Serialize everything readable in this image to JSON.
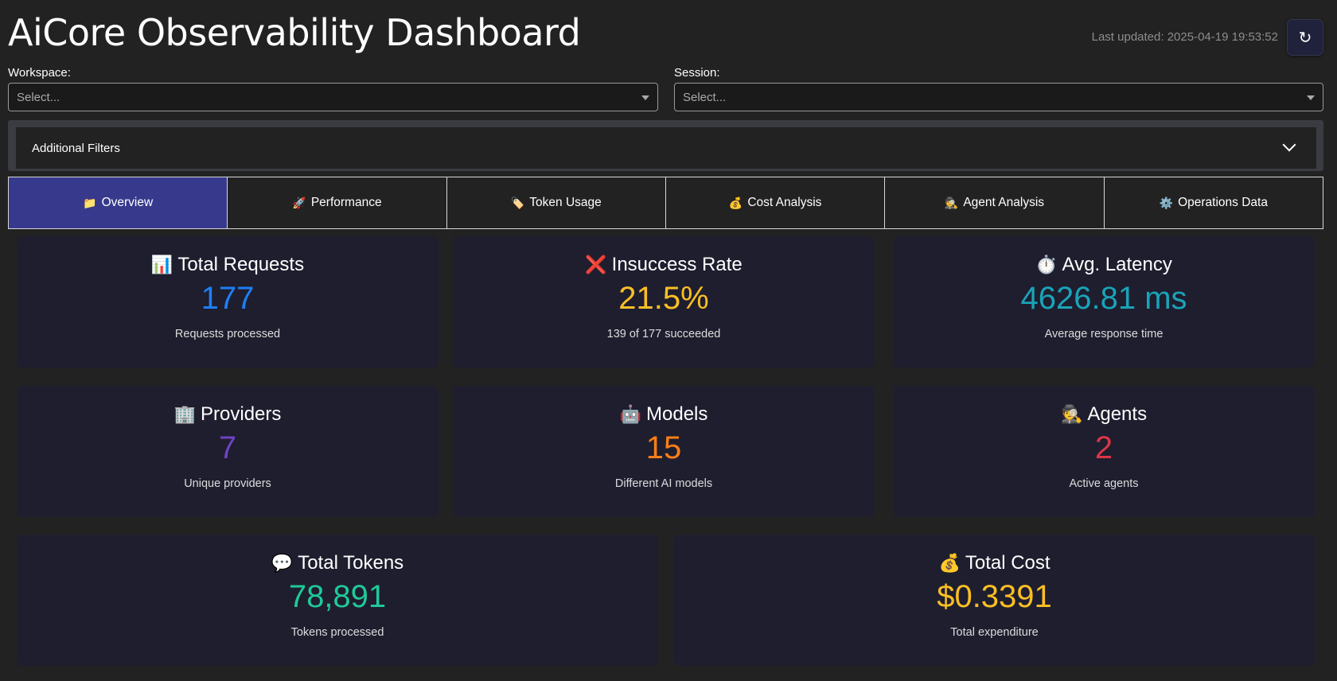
{
  "header": {
    "title": "AiCore Observability Dashboard",
    "last_updated": "Last updated: 2025-04-19 19:53:52",
    "refresh_glyph": "↻"
  },
  "filters": {
    "workspace_label": "Workspace:",
    "workspace_placeholder": "Select...",
    "session_label": "Session:",
    "session_placeholder": "Select...",
    "additional_filters_label": "Additional Filters"
  },
  "tabs": [
    {
      "icon": "📁",
      "icon_name": "folder-icon",
      "label": "Overview",
      "active": true
    },
    {
      "icon": "🚀",
      "icon_name": "rocket-icon",
      "label": "Performance",
      "active": false
    },
    {
      "icon": "🏷️",
      "icon_name": "tag-icon",
      "label": "Token Usage",
      "active": false
    },
    {
      "icon": "💰",
      "icon_name": "money-bag-icon",
      "label": "Cost Analysis",
      "active": false
    },
    {
      "icon": "🕵️",
      "icon_name": "detective-icon",
      "label": "Agent Analysis",
      "active": false
    },
    {
      "icon": "⚙️",
      "icon_name": "gear-icon",
      "label": "Operations Data",
      "active": false
    }
  ],
  "cards": [
    {
      "icon": "📊",
      "icon_name": "bar-chart-icon",
      "title": "Total Requests",
      "value": "177",
      "subtitle": "Requests processed",
      "color": "#1e7ff5"
    },
    {
      "icon": "❌",
      "icon_name": "cross-icon",
      "title": "Insuccess Rate",
      "value": "21.5%",
      "subtitle": "139 of 177 succeeded",
      "color": "#fbbf24"
    },
    {
      "icon": "⏱️",
      "icon_name": "stopwatch-icon",
      "title": "Avg. Latency",
      "value": "4626.81 ms",
      "subtitle": "Average response time",
      "color": "#1aa3b8"
    },
    {
      "icon": "🏢",
      "icon_name": "office-building-icon",
      "title": "Providers",
      "value": "7",
      "subtitle": "Unique providers",
      "color": "#6f42c1"
    },
    {
      "icon": "🤖",
      "icon_name": "robot-icon",
      "title": "Models",
      "value": "15",
      "subtitle": "Different AI models",
      "color": "#fd7e14"
    },
    {
      "icon": "🕵️",
      "icon_name": "detective-icon",
      "title": "Agents",
      "value": "2",
      "subtitle": "Active agents",
      "color": "#dc3545"
    },
    {
      "icon": "💬",
      "icon_name": "speech-bubble-icon",
      "title": "Total Tokens",
      "value": "78,891",
      "subtitle": "Tokens processed",
      "color": "#20c997"
    },
    {
      "icon": "💰",
      "icon_name": "money-bag-icon",
      "title": "Total Cost",
      "value": "$0.3391",
      "subtitle": "Total expenditure",
      "color": "#fbbf24"
    }
  ]
}
